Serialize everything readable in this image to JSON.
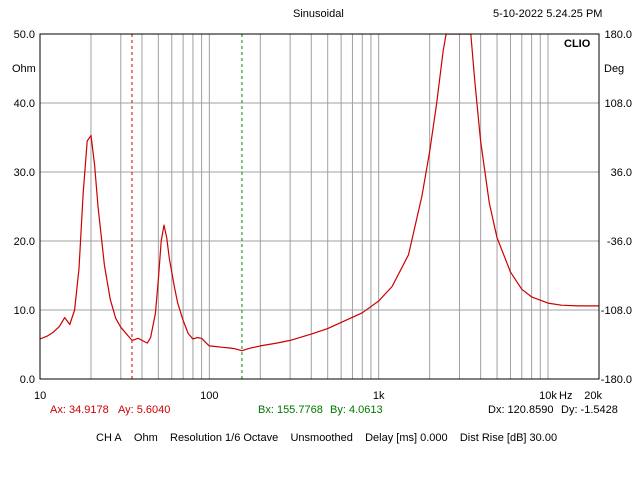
{
  "header": {
    "title": "Sinusoidal",
    "datetime": "5-10-2022 5.24.25 PM",
    "brand": "CLIO"
  },
  "axes": {
    "left_unit": "Ohm",
    "right_unit": "Deg",
    "x_unit": "Hz"
  },
  "markers": {
    "a": {
      "ax_label": "Ax: 34.9178",
      "ay_label": "Ay: 5.6040",
      "x": 34.9178,
      "color": "#cc0000"
    },
    "b": {
      "bx_label": "Bx: 155.7768",
      "by_label": "By: 4.0613",
      "x": 155.7768,
      "color": "#008800"
    },
    "dx_label": "Dx: 120.8590",
    "dy_label": "Dy: -1.5428"
  },
  "status_bar": {
    "channel": "CH A",
    "unit": "Ohm",
    "resolution": "Resolution 1/6 Octave",
    "smoothing": "Unsmoothed",
    "delay": "Delay [ms] 0.000",
    "dist_rise": "Dist Rise [dB] 30.00"
  },
  "chart_data": {
    "type": "line",
    "title": "Sinusoidal",
    "xlabel": "Hz",
    "ylabel": "Ohm",
    "x_scale": "log",
    "xlim": [
      10,
      20000
    ],
    "ylim": [
      0,
      50
    ],
    "y2lim": [
      -180,
      180
    ],
    "x_tick_labels": [
      {
        "value": 10,
        "label": "10"
      },
      {
        "value": 100,
        "label": "100"
      },
      {
        "value": 1000,
        "label": "1k"
      },
      {
        "value": 10000,
        "label": "10k"
      },
      {
        "value": 20000,
        "label": "20k"
      }
    ],
    "y_tick_labels": [
      "0.0",
      "10.0",
      "20.0",
      "30.0",
      "40.0",
      "50.0"
    ],
    "y2_tick_labels": [
      "-180.0",
      "-108.0",
      "-36.0",
      "36.0",
      "108.0",
      "180.0"
    ],
    "grid": true,
    "series": [
      {
        "color": "#cc0000",
        "x": [
          10,
          11,
          12,
          13,
          14,
          15,
          16,
          17,
          18,
          19,
          20,
          21,
          22,
          24,
          26,
          28,
          30,
          33,
          35,
          38,
          40,
          43,
          45,
          48,
          50,
          52,
          54,
          56,
          58,
          62,
          65,
          70,
          75,
          80,
          85,
          90,
          95,
          100,
          110,
          120,
          130,
          140,
          155.8,
          170,
          200,
          250,
          300,
          400,
          500,
          600,
          800,
          1000,
          1200,
          1500,
          1800,
          2000,
          2200,
          2400,
          2500,
          2700,
          2900,
          3200,
          3500,
          3700,
          4000,
          4500,
          5000,
          6000,
          7000,
          8000,
          10000,
          12000,
          15000,
          20000
        ],
        "values": [
          5.8,
          6.2,
          6.8,
          7.6,
          8.9,
          7.9,
          10.0,
          16.0,
          27.0,
          34.5,
          35.3,
          31.0,
          25.0,
          16.5,
          11.5,
          8.8,
          7.5,
          6.3,
          5.6,
          5.9,
          5.6,
          5.2,
          6.0,
          9.5,
          14.5,
          20.0,
          22.3,
          20.5,
          17.5,
          13.5,
          11.0,
          8.5,
          6.6,
          5.8,
          6.0,
          5.9,
          5.3,
          4.8,
          4.7,
          4.6,
          4.5,
          4.4,
          4.1,
          4.4,
          4.8,
          5.2,
          5.6,
          6.5,
          7.3,
          8.2,
          9.6,
          11.3,
          13.4,
          18.0,
          26.5,
          33.0,
          40.0,
          47.5,
          50.0,
          50.0,
          50.0,
          50.0,
          50.0,
          43.0,
          34.5,
          25.5,
          20.5,
          15.5,
          13.0,
          11.9,
          11.0,
          10.7,
          10.6,
          10.6
        ]
      }
    ]
  }
}
